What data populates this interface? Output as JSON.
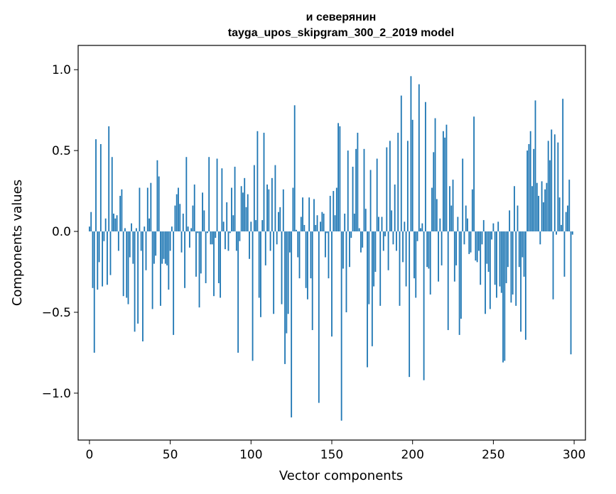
{
  "chart_data": {
    "type": "bar",
    "title_line1": "и северянин",
    "title_line2": "tayga_upos_skipgram_300_2_2019 model",
    "xlabel": "Vector components",
    "ylabel": "Components values",
    "xlim": [
      -7,
      307
    ],
    "ylim": [
      -1.29,
      1.15
    ],
    "xticks": [
      0,
      50,
      100,
      150,
      200,
      250,
      300
    ],
    "xtick_labels": [
      "0",
      "50",
      "100",
      "150",
      "200",
      "250",
      "300"
    ],
    "yticks": [
      -1.0,
      -0.5,
      0.0,
      0.5,
      1.0
    ],
    "ytick_labels": [
      "−1.0",
      "−0.5",
      "0.0",
      "0.5",
      "1.0"
    ],
    "bar_color": "#1f77b4",
    "grid": false,
    "legend": "none",
    "x": "0..299 (one bar per vector component)",
    "values": [
      0.03,
      0.12,
      -0.35,
      -0.75,
      0.57,
      -0.36,
      -0.19,
      0.54,
      -0.34,
      -0.06,
      0.08,
      -0.33,
      0.65,
      -0.27,
      0.46,
      0.11,
      0.08,
      0.1,
      -0.12,
      0.22,
      0.26,
      -0.4,
      0.02,
      -0.41,
      -0.45,
      -0.16,
      0.05,
      -0.2,
      -0.62,
      0.02,
      -0.57,
      0.27,
      -0.12,
      -0.68,
      0.03,
      -0.24,
      0.27,
      0.08,
      0.3,
      -0.48,
      -0.2,
      -0.15,
      0.44,
      0.34,
      -0.46,
      -0.2,
      -0.17,
      -0.2,
      -0.21,
      -0.36,
      -0.12,
      0.03,
      -0.64,
      0.16,
      0.23,
      0.27,
      0.17,
      -0.13,
      0.11,
      -0.35,
      0.46,
      0.03,
      -0.1,
      0.02,
      0.16,
      0.29,
      -0.28,
      -0.01,
      -0.47,
      -0.26,
      0.24,
      0.13,
      -0.32,
      -0.01,
      0.46,
      -0.08,
      -0.08,
      -0.4,
      -0.04,
      0.45,
      -0.32,
      -0.41,
      0.39,
      0.06,
      -0.11,
      0.18,
      -0.12,
      -0.01,
      0.27,
      0.1,
      0.4,
      -0.12,
      -0.75,
      -0.06,
      0.28,
      0.24,
      0.33,
      0.15,
      0.23,
      -0.17,
      0.06,
      -0.8,
      0.41,
      0.07,
      0.62,
      -0.41,
      -0.53,
      0.07,
      0.61,
      -0.21,
      0.29,
      0.26,
      -0.12,
      0.33,
      -0.51,
      0.41,
      -0.08,
      0.12,
      0.15,
      -0.45,
      0.26,
      -0.82,
      -0.63,
      -0.51,
      -0.13,
      -1.15,
      0.27,
      0.78,
      0.01,
      -0.16,
      -0.29,
      0.09,
      0.21,
      0.04,
      -0.35,
      -0.42,
      0.21,
      -0.29,
      -0.61,
      0.2,
      0.04,
      0.1,
      -1.06,
      0.06,
      0.12,
      0.11,
      -0.16,
      -0.01,
      -0.29,
      0.22,
      -0.65,
      0.25,
      0.1,
      0.27,
      0.67,
      0.65,
      -1.17,
      -0.23,
      0.11,
      -0.5,
      0.5,
      -0.22,
      -0.04,
      0.4,
      0.11,
      0.51,
      0.61,
      0.02,
      -0.13,
      -0.1,
      0.51,
      0.14,
      -0.84,
      -0.45,
      0.38,
      -0.71,
      -0.34,
      -0.25,
      0.45,
      0.09,
      -0.46,
      0.09,
      -0.12,
      -0.03,
      0.52,
      -0.24,
      0.56,
      0.13,
      -0.08,
      0.29,
      -0.12,
      0.61,
      -0.46,
      0.84,
      -0.19,
      0.06,
      -0.34,
      0.56,
      -0.9,
      0.96,
      0.69,
      -0.29,
      -0.41,
      -0.06,
      0.91,
      0.02,
      0.05,
      -0.92,
      0.8,
      -0.22,
      -0.23,
      -0.39,
      0.27,
      0.49,
      0.7,
      0.2,
      -0.31,
      0.08,
      -0.21,
      0.62,
      0.58,
      0.66,
      -0.61,
      0.28,
      0.16,
      0.32,
      -0.31,
      -0.21,
      0.09,
      -0.64,
      -0.54,
      0.45,
      -0.08,
      0.16,
      0.08,
      -0.14,
      -0.13,
      0.26,
      0.71,
      -0.18,
      -0.19,
      -0.12,
      -0.33,
      -0.08,
      0.07,
      -0.51,
      -0.2,
      -0.25,
      -0.48,
      -0.05,
      0.05,
      -0.33,
      -0.41,
      0.06,
      -0.34,
      -0.38,
      -0.81,
      -0.8,
      -0.32,
      -0.22,
      0.13,
      -0.44,
      -0.39,
      0.28,
      -0.46,
      0.16,
      -0.22,
      -0.62,
      -0.16,
      -0.28,
      -0.67,
      0.5,
      0.54,
      0.62,
      0.28,
      0.51,
      0.81,
      0.3,
      0.22,
      -0.08,
      0.31,
      0.18,
      0.26,
      0.3,
      0.56,
      0.44,
      0.63,
      -0.42,
      0.6,
      -0.02,
      0.55,
      0.21,
      0.04,
      0.82,
      -0.28,
      0.12,
      0.16,
      0.32,
      -0.76,
      -0.02
    ]
  }
}
